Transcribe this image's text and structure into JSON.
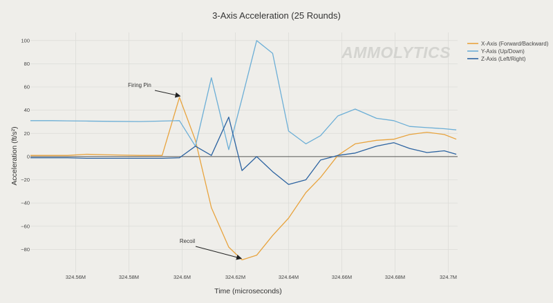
{
  "chart_data": {
    "type": "line",
    "title": "3-Axis Acceleration (25 Rounds)",
    "xlabel": "Time (microseconds)",
    "ylabel": "Acceleration (ft/s²)",
    "xlim": [
      324.543,
      324.7035
    ],
    "ylim": [
      -100,
      107
    ],
    "grid": true,
    "legend_position": "top-right",
    "watermark": "AMMOLYTICS",
    "x_ticks": [
      {
        "value": 324.56,
        "label": "324.56M"
      },
      {
        "value": 324.58,
        "label": "324.58M"
      },
      {
        "value": 324.6,
        "label": "324.6M"
      },
      {
        "value": 324.62,
        "label": "324.62M"
      },
      {
        "value": 324.64,
        "label": "324.64M"
      },
      {
        "value": 324.66,
        "label": "324.66M"
      },
      {
        "value": 324.68,
        "label": "324.68M"
      },
      {
        "value": 324.7,
        "label": "324.7M"
      }
    ],
    "y_ticks": [
      {
        "value": -80,
        "label": "−80"
      },
      {
        "value": -60,
        "label": "−60"
      },
      {
        "value": -40,
        "label": "−40"
      },
      {
        "value": -20,
        "label": "−20"
      },
      {
        "value": 0,
        "label": "0"
      },
      {
        "value": 20,
        "label": "20"
      },
      {
        "value": 40,
        "label": "40"
      },
      {
        "value": 60,
        "label": "60"
      },
      {
        "value": 80,
        "label": "80"
      },
      {
        "value": 100,
        "label": "100"
      }
    ],
    "x": [
      324.543,
      324.551,
      324.557,
      324.564,
      324.573,
      324.584,
      324.5925,
      324.599,
      324.605,
      324.611,
      324.6175,
      324.6225,
      324.628,
      324.634,
      324.64,
      324.6465,
      324.652,
      324.6585,
      324.665,
      324.673,
      324.6795,
      324.6855,
      324.692,
      324.6985,
      324.703
    ],
    "series": [
      {
        "name": "X-Axis (Forward/Backward)",
        "color": "#e8a33d",
        "values": [
          1,
          1,
          1,
          2,
          1.5,
          1,
          1,
          51,
          14,
          -44,
          -78,
          -89,
          -85,
          -68,
          -53,
          -31,
          -18,
          1,
          11,
          14,
          15,
          19,
          21,
          19,
          15
        ]
      },
      {
        "name": "Y-Axis (Up/Down)",
        "color": "#6baed6",
        "values": [
          31,
          31,
          30.8,
          30.6,
          30.4,
          30.2,
          30.6,
          31,
          9,
          68,
          6,
          50,
          100,
          89,
          22,
          11,
          18,
          35,
          41,
          33,
          31,
          26,
          25,
          24,
          23
        ]
      },
      {
        "name": "Z-Axis (Left/Right)",
        "color": "#2b62a0",
        "values": [
          -1,
          -1,
          -1,
          -1.5,
          -1.5,
          -1.5,
          -1.5,
          -1,
          9,
          1,
          34,
          -12,
          0,
          -13,
          -24,
          -20,
          -3,
          1,
          3,
          9,
          12,
          7,
          3.5,
          5,
          2
        ]
      }
    ],
    "annotations": [
      {
        "text": "Firing Pin",
        "x": 324.5995,
        "y": 51
      },
      {
        "text": "Recoil",
        "x": 324.6225,
        "y": -89
      }
    ]
  }
}
